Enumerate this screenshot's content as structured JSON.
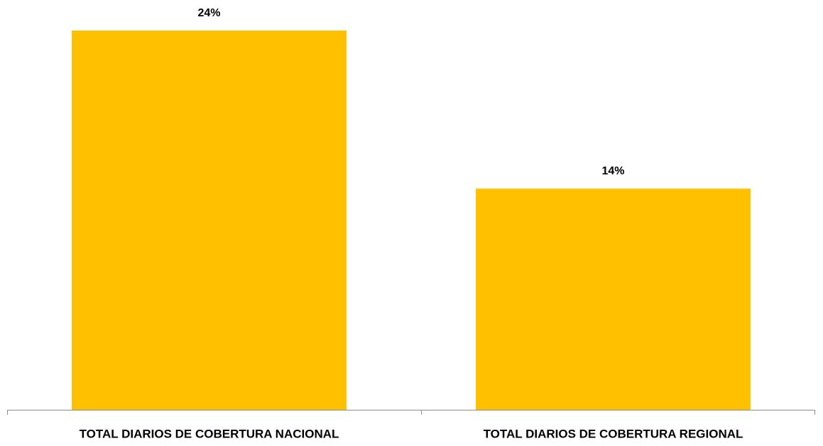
{
  "chart_data": {
    "type": "bar",
    "categories": [
      "TOTAL DIARIOS DE COBERTURA NACIONAL",
      "TOTAL DIARIOS DE COBERTURA REGIONAL"
    ],
    "values": [
      24,
      14
    ],
    "value_labels": [
      "24%",
      "14%"
    ],
    "color": "#ffc000"
  }
}
